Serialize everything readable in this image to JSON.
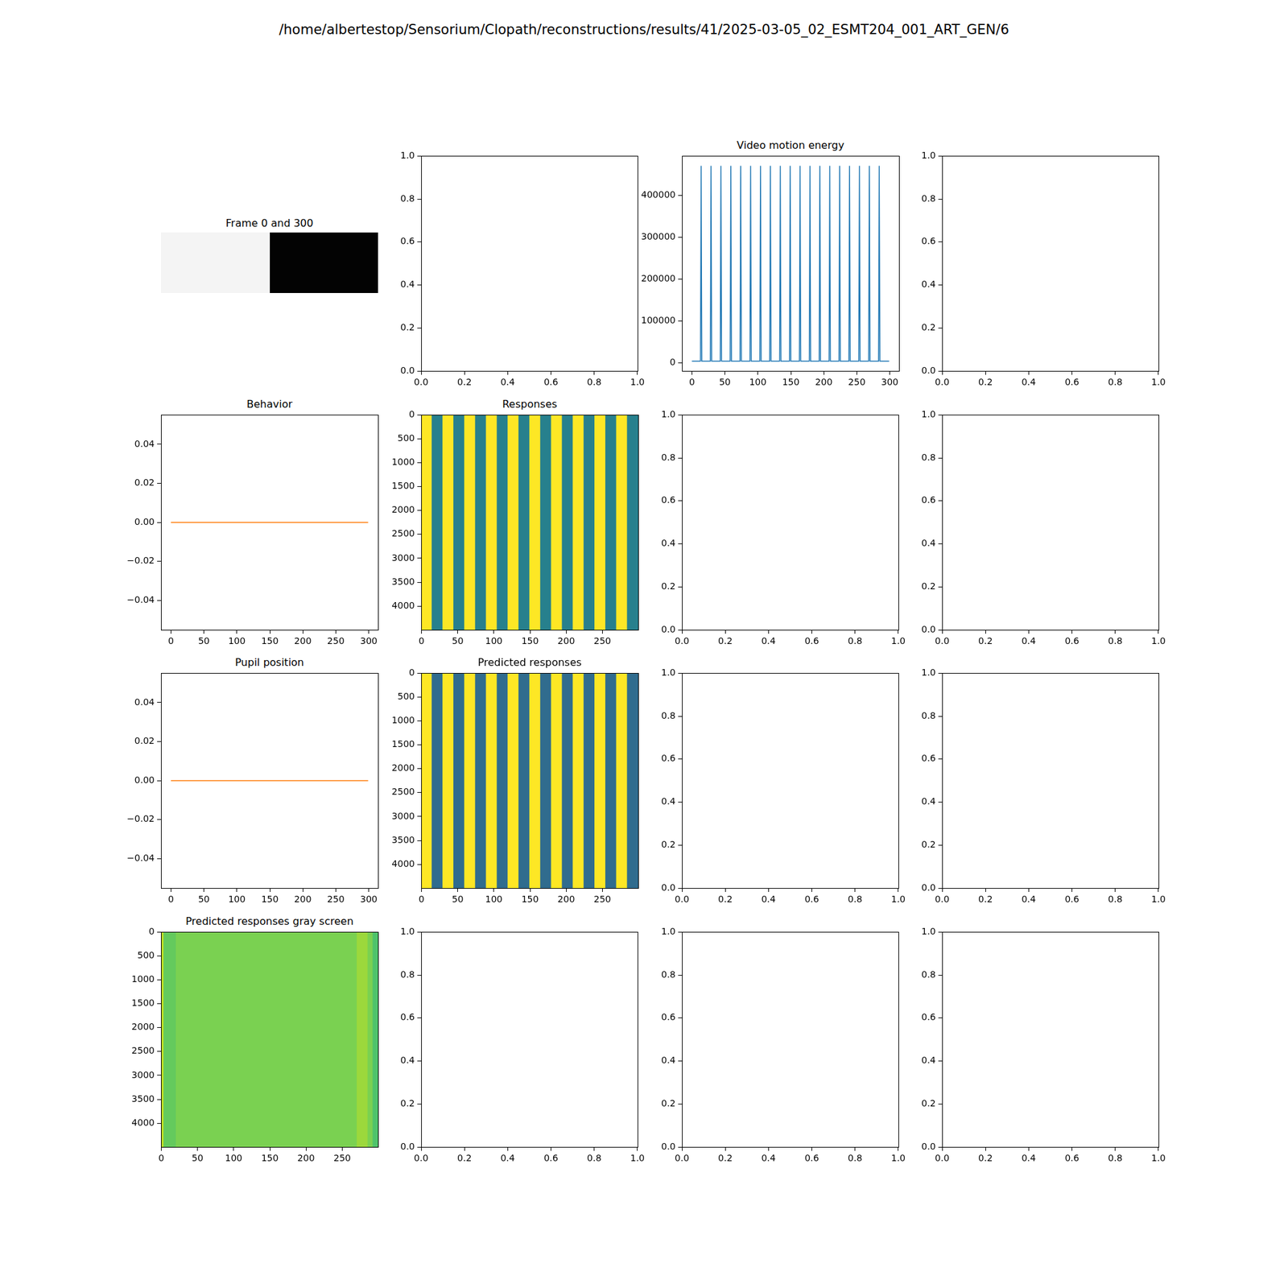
{
  "title": "/home/albertestop/Sensorium/Clopath/reconstructions/results/41/2025-03-05_02_ESMT204_001_ART_GEN/6",
  "chart_data": [
    {
      "type": "image",
      "title": "Frame 0 and 300",
      "colors": [
        "#f4f4f4",
        "#030303"
      ]
    },
    {
      "type": "line",
      "series": [],
      "xlim": [
        0,
        1
      ],
      "ylim": [
        0,
        1
      ],
      "grid": false,
      "xticks": [
        {
          "value": 0,
          "label": "0.0"
        },
        {
          "value": 0.2,
          "label": "0.2"
        },
        {
          "value": 0.4,
          "label": "0.4"
        },
        {
          "value": 0.6,
          "label": "0.6"
        },
        {
          "value": 0.8,
          "label": "0.8"
        },
        {
          "value": 1,
          "label": "1.0"
        }
      ],
      "yticks": [
        {
          "value": 0,
          "label": "0.0"
        },
        {
          "value": 0.2,
          "label": "0.2"
        },
        {
          "value": 0.4,
          "label": "0.4"
        },
        {
          "value": 0.6,
          "label": "0.6"
        },
        {
          "value": 0.8,
          "label": "0.8"
        },
        {
          "value": 1,
          "label": "1.0"
        }
      ]
    },
    {
      "type": "line",
      "title": "Video motion energy",
      "x": [
        0,
        13,
        14,
        15,
        28,
        29,
        30,
        43,
        44,
        45,
        58,
        59,
        60,
        73,
        74,
        75,
        88,
        89,
        90,
        103,
        104,
        105,
        118,
        119,
        120,
        133,
        134,
        135,
        148,
        149,
        150,
        163,
        164,
        165,
        178,
        179,
        180,
        193,
        194,
        195,
        208,
        209,
        210,
        223,
        224,
        225,
        238,
        239,
        240,
        253,
        254,
        255,
        268,
        269,
        270,
        283,
        284,
        285,
        299
      ],
      "series": [
        {
          "color": "#1f77b4",
          "values": [
            4000,
            4000,
            470000,
            4000,
            4000,
            470000,
            4000,
            4000,
            470000,
            4000,
            4000,
            470000,
            4000,
            4000,
            470000,
            4000,
            4000,
            470000,
            4000,
            4000,
            470000,
            4000,
            4000,
            470000,
            4000,
            4000,
            470000,
            4000,
            4000,
            470000,
            4000,
            4000,
            470000,
            4000,
            4000,
            470000,
            4000,
            4000,
            470000,
            4000,
            4000,
            470000,
            4000,
            4000,
            470000,
            4000,
            4000,
            470000,
            4000,
            4000,
            470000,
            4000,
            4000,
            470000,
            4000,
            4000,
            470000,
            4000,
            4000
          ]
        }
      ],
      "xlim": [
        -15,
        314
      ],
      "ylim": [
        -19300,
        493300
      ],
      "grid": false,
      "xticks": [
        0,
        50,
        100,
        150,
        200,
        250,
        300
      ],
      "yticks": [
        0,
        100000,
        200000,
        300000,
        400000
      ]
    },
    {
      "type": "line",
      "series": [],
      "xlim": [
        0,
        1
      ],
      "ylim": [
        0,
        1
      ],
      "grid": false,
      "xticks": [
        {
          "value": 0,
          "label": "0.0"
        },
        {
          "value": 0.2,
          "label": "0.2"
        },
        {
          "value": 0.4,
          "label": "0.4"
        },
        {
          "value": 0.6,
          "label": "0.6"
        },
        {
          "value": 0.8,
          "label": "0.8"
        },
        {
          "value": 1,
          "label": "1.0"
        }
      ],
      "yticks": [
        {
          "value": 0,
          "label": "0.0"
        },
        {
          "value": 0.2,
          "label": "0.2"
        },
        {
          "value": 0.4,
          "label": "0.4"
        },
        {
          "value": 0.6,
          "label": "0.6"
        },
        {
          "value": 0.8,
          "label": "0.8"
        },
        {
          "value": 1,
          "label": "1.0"
        }
      ]
    },
    {
      "type": "line",
      "title": "Behavior",
      "x": [
        0,
        299
      ],
      "series": [
        {
          "color": "#ff7f0e",
          "values": [
            0,
            0
          ]
        }
      ],
      "xlim": [
        -15,
        314
      ],
      "ylim": [
        -0.055,
        0.055
      ],
      "grid": false,
      "xticks": [
        0,
        50,
        100,
        150,
        200,
        250,
        300
      ],
      "yticks": [
        {
          "value": -0.04,
          "label": "−0.04"
        },
        {
          "value": -0.02,
          "label": "−0.02"
        },
        {
          "value": 0,
          "label": "0.00"
        },
        {
          "value": 0.02,
          "label": "0.02"
        },
        {
          "value": 0.04,
          "label": "0.04"
        }
      ]
    },
    {
      "type": "heatmap",
      "title": "Responses",
      "x_edges": [
        -0.5,
        14,
        29,
        44,
        59,
        74,
        89,
        104,
        119,
        134,
        149,
        164,
        179,
        194,
        209,
        224,
        239,
        254,
        269,
        284,
        299.5
      ],
      "y_edges": [
        -0.5,
        4497.5
      ],
      "values": [
        1,
        0.43,
        1,
        0.43,
        1,
        0.43,
        1,
        0.43,
        1,
        0.43,
        1,
        0.43,
        1,
        0.43,
        1,
        0.43,
        1,
        0.43,
        1,
        0.43
      ],
      "zlim": [
        0,
        1
      ],
      "xlim": [
        -0.5,
        299.5
      ],
      "ylim": [
        4497.5,
        -0.5
      ],
      "grid": false,
      "xticks": [
        0,
        50,
        100,
        150,
        200,
        250
      ],
      "yticks": [
        0,
        500,
        1000,
        1500,
        2000,
        2500,
        3000,
        3500,
        4000
      ]
    },
    {
      "type": "line",
      "series": [],
      "xlim": [
        0,
        1
      ],
      "ylim": [
        0,
        1
      ],
      "grid": false,
      "xticks": [
        {
          "value": 0,
          "label": "0.0"
        },
        {
          "value": 0.2,
          "label": "0.2"
        },
        {
          "value": 0.4,
          "label": "0.4"
        },
        {
          "value": 0.6,
          "label": "0.6"
        },
        {
          "value": 0.8,
          "label": "0.8"
        },
        {
          "value": 1,
          "label": "1.0"
        }
      ],
      "yticks": [
        {
          "value": 0,
          "label": "0.0"
        },
        {
          "value": 0.2,
          "label": "0.2"
        },
        {
          "value": 0.4,
          "label": "0.4"
        },
        {
          "value": 0.6,
          "label": "0.6"
        },
        {
          "value": 0.8,
          "label": "0.8"
        },
        {
          "value": 1,
          "label": "1.0"
        }
      ]
    },
    {
      "type": "line",
      "series": [],
      "xlim": [
        0,
        1
      ],
      "ylim": [
        0,
        1
      ],
      "grid": false,
      "xticks": [
        {
          "value": 0,
          "label": "0.0"
        },
        {
          "value": 0.2,
          "label": "0.2"
        },
        {
          "value": 0.4,
          "label": "0.4"
        },
        {
          "value": 0.6,
          "label": "0.6"
        },
        {
          "value": 0.8,
          "label": "0.8"
        },
        {
          "value": 1,
          "label": "1.0"
        }
      ],
      "yticks": [
        {
          "value": 0,
          "label": "0.0"
        },
        {
          "value": 0.2,
          "label": "0.2"
        },
        {
          "value": 0.4,
          "label": "0.4"
        },
        {
          "value": 0.6,
          "label": "0.6"
        },
        {
          "value": 0.8,
          "label": "0.8"
        },
        {
          "value": 1,
          "label": "1.0"
        }
      ]
    },
    {
      "type": "line",
      "title": "Pupil position",
      "x": [
        0,
        299
      ],
      "series": [
        {
          "color": "#ff7f0e",
          "values": [
            0,
            0
          ]
        }
      ],
      "xlim": [
        -15,
        314
      ],
      "ylim": [
        -0.055,
        0.055
      ],
      "grid": false,
      "xticks": [
        0,
        50,
        100,
        150,
        200,
        250,
        300
      ],
      "yticks": [
        {
          "value": -0.04,
          "label": "−0.04"
        },
        {
          "value": -0.02,
          "label": "−0.02"
        },
        {
          "value": 0,
          "label": "0.00"
        },
        {
          "value": 0.02,
          "label": "0.02"
        },
        {
          "value": 0.04,
          "label": "0.04"
        }
      ]
    },
    {
      "type": "heatmap",
      "title": "Predicted responses",
      "x_edges": [
        -0.5,
        14,
        29,
        44,
        59,
        74,
        89,
        104,
        119,
        134,
        149,
        164,
        179,
        194,
        209,
        224,
        239,
        254,
        269,
        284,
        299.5
      ],
      "y_edges": [
        -0.5,
        4497.5
      ],
      "values": [
        1,
        0.35,
        1,
        0.35,
        1,
        0.35,
        1,
        0.35,
        1,
        0.35,
        1,
        0.35,
        1,
        0.35,
        1,
        0.35,
        1,
        0.35,
        1,
        0.35
      ],
      "zlim": [
        0,
        1
      ],
      "xlim": [
        -0.5,
        299.5
      ],
      "ylim": [
        4497.5,
        -0.5
      ],
      "grid": false,
      "xticks": [
        0,
        50,
        100,
        150,
        200,
        250
      ],
      "yticks": [
        0,
        500,
        1000,
        1500,
        2000,
        2500,
        3000,
        3500,
        4000
      ]
    },
    {
      "type": "line",
      "series": [],
      "xlim": [
        0,
        1
      ],
      "ylim": [
        0,
        1
      ],
      "grid": false,
      "xticks": [
        {
          "value": 0,
          "label": "0.0"
        },
        {
          "value": 0.2,
          "label": "0.2"
        },
        {
          "value": 0.4,
          "label": "0.4"
        },
        {
          "value": 0.6,
          "label": "0.6"
        },
        {
          "value": 0.8,
          "label": "0.8"
        },
        {
          "value": 1,
          "label": "1.0"
        }
      ],
      "yticks": [
        {
          "value": 0,
          "label": "0.0"
        },
        {
          "value": 0.2,
          "label": "0.2"
        },
        {
          "value": 0.4,
          "label": "0.4"
        },
        {
          "value": 0.6,
          "label": "0.6"
        },
        {
          "value": 0.8,
          "label": "0.8"
        },
        {
          "value": 1,
          "label": "1.0"
        }
      ]
    },
    {
      "type": "line",
      "series": [],
      "xlim": [
        0,
        1
      ],
      "ylim": [
        0,
        1
      ],
      "grid": false,
      "xticks": [
        {
          "value": 0,
          "label": "0.0"
        },
        {
          "value": 0.2,
          "label": "0.2"
        },
        {
          "value": 0.4,
          "label": "0.4"
        },
        {
          "value": 0.6,
          "label": "0.6"
        },
        {
          "value": 0.8,
          "label": "0.8"
        },
        {
          "value": 1,
          "label": "1.0"
        }
      ],
      "yticks": [
        {
          "value": 0,
          "label": "0.0"
        },
        {
          "value": 0.2,
          "label": "0.2"
        },
        {
          "value": 0.4,
          "label": "0.4"
        },
        {
          "value": 0.6,
          "label": "0.6"
        },
        {
          "value": 0.8,
          "label": "0.8"
        },
        {
          "value": 1,
          "label": "1.0"
        }
      ]
    },
    {
      "type": "heatmap",
      "title": "Predicted responses gray screen",
      "x_edges": [
        -0.5,
        3,
        20,
        270,
        285,
        292,
        299.5
      ],
      "y_edges": [
        -0.5,
        4497.5
      ],
      "values": [
        0.9,
        0.76,
        0.8,
        0.85,
        0.8,
        0.72
      ],
      "zlim": [
        0,
        1
      ],
      "xlim": [
        -0.5,
        299.5
      ],
      "ylim": [
        4497.5,
        -0.5
      ],
      "grid": false,
      "xticks": [
        0,
        50,
        100,
        150,
        200,
        250
      ],
      "yticks": [
        0,
        500,
        1000,
        1500,
        2000,
        2500,
        3000,
        3500,
        4000
      ]
    },
    {
      "type": "line",
      "series": [],
      "xlim": [
        0,
        1
      ],
      "ylim": [
        0,
        1
      ],
      "grid": false,
      "xticks": [
        {
          "value": 0,
          "label": "0.0"
        },
        {
          "value": 0.2,
          "label": "0.2"
        },
        {
          "value": 0.4,
          "label": "0.4"
        },
        {
          "value": 0.6,
          "label": "0.6"
        },
        {
          "value": 0.8,
          "label": "0.8"
        },
        {
          "value": 1,
          "label": "1.0"
        }
      ],
      "yticks": [
        {
          "value": 0,
          "label": "0.0"
        },
        {
          "value": 0.2,
          "label": "0.2"
        },
        {
          "value": 0.4,
          "label": "0.4"
        },
        {
          "value": 0.6,
          "label": "0.6"
        },
        {
          "value": 0.8,
          "label": "0.8"
        },
        {
          "value": 1,
          "label": "1.0"
        }
      ]
    },
    {
      "type": "line",
      "series": [],
      "xlim": [
        0,
        1
      ],
      "ylim": [
        0,
        1
      ],
      "grid": false,
      "xticks": [
        {
          "value": 0,
          "label": "0.0"
        },
        {
          "value": 0.2,
          "label": "0.2"
        },
        {
          "value": 0.4,
          "label": "0.4"
        },
        {
          "value": 0.6,
          "label": "0.6"
        },
        {
          "value": 0.8,
          "label": "0.8"
        },
        {
          "value": 1,
          "label": "1.0"
        }
      ],
      "yticks": [
        {
          "value": 0,
          "label": "0.0"
        },
        {
          "value": 0.2,
          "label": "0.2"
        },
        {
          "value": 0.4,
          "label": "0.4"
        },
        {
          "value": 0.6,
          "label": "0.6"
        },
        {
          "value": 0.8,
          "label": "0.8"
        },
        {
          "value": 1,
          "label": "1.0"
        }
      ]
    },
    {
      "type": "line",
      "series": [],
      "xlim": [
        0,
        1
      ],
      "ylim": [
        0,
        1
      ],
      "grid": false,
      "xticks": [
        {
          "value": 0,
          "label": "0.0"
        },
        {
          "value": 0.2,
          "label": "0.2"
        },
        {
          "value": 0.4,
          "label": "0.4"
        },
        {
          "value": 0.6,
          "label": "0.6"
        },
        {
          "value": 0.8,
          "label": "0.8"
        },
        {
          "value": 1,
          "label": "1.0"
        }
      ],
      "yticks": [
        {
          "value": 0,
          "label": "0.0"
        },
        {
          "value": 0.2,
          "label": "0.2"
        },
        {
          "value": 0.4,
          "label": "0.4"
        },
        {
          "value": 0.6,
          "label": "0.6"
        },
        {
          "value": 0.8,
          "label": "0.8"
        },
        {
          "value": 1,
          "label": "1.0"
        }
      ]
    }
  ]
}
